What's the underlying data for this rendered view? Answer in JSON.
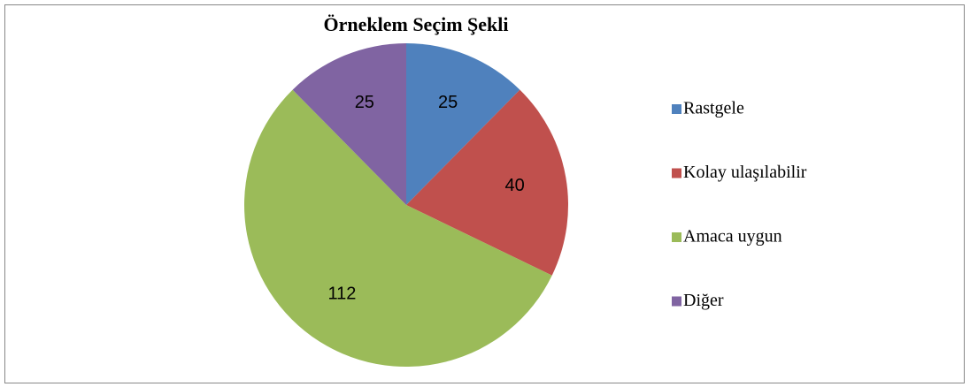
{
  "chart_data": {
    "type": "pie",
    "title": "Örneklem Seçim Şekli",
    "categories": [
      "Rastgele",
      "Kolay ulaşılabilir",
      "Amaca uygun",
      "Diğer"
    ],
    "values": [
      25,
      40,
      112,
      25
    ],
    "colors": [
      "#4f81bd",
      "#c0504d",
      "#9bbb59",
      "#8064a2"
    ],
    "legend": "right"
  }
}
